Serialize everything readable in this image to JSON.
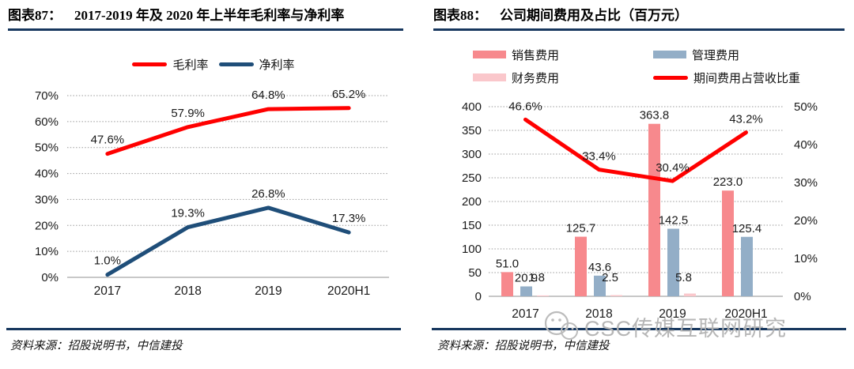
{
  "panels": {
    "left": {
      "tag": "图表87：",
      "title": "2017-2019 年及 2020 年上半年毛利率与净利率",
      "source": "资料来源：招股说明书，中信建投"
    },
    "right": {
      "tag": "图表88：",
      "title": "公司期间费用及占比（百万元）",
      "source": "资料来源：招股说明书，中信建投"
    }
  },
  "watermark": {
    "text": "CSC传媒互联网研究"
  },
  "colors": {
    "accent_navy": "#17375E"
  },
  "chart_data": [
    {
      "type": "line",
      "title": "2017-2019 年及 2020 年上半年毛利率与净利率",
      "categories": [
        "2017",
        "2018",
        "2019",
        "2020H1"
      ],
      "series": [
        {
          "name": "毛利率",
          "color": "#FF0000",
          "values": [
            47.6,
            57.9,
            64.8,
            65.2
          ],
          "labels": [
            "47.6%",
            "57.9%",
            "64.8%",
            "65.2%"
          ]
        },
        {
          "name": "净利率",
          "color": "#1F4E79",
          "values": [
            1.0,
            19.3,
            26.8,
            17.3
          ],
          "labels": [
            "1.0%",
            "19.3%",
            "26.8%",
            "17.3%"
          ]
        }
      ],
      "ylim": [
        0,
        70
      ],
      "ytick_step": 10,
      "ytick_labels": [
        "0%",
        "10%",
        "20%",
        "30%",
        "40%",
        "50%",
        "60%",
        "70%"
      ],
      "grid": true,
      "legend_position": "top"
    },
    {
      "type": "bar+line",
      "title": "公司期间费用及占比（百万元）",
      "categories": [
        "2017",
        "2018",
        "2019",
        "2020H1"
      ],
      "bar_series": [
        {
          "name": "销售费用",
          "color": "#F7898D",
          "values": [
            51.0,
            125.7,
            363.8,
            223.0
          ],
          "labels": [
            "51.0",
            "125.7",
            "363.8",
            "223.0"
          ]
        },
        {
          "name": "管理费用",
          "color": "#93AEC7",
          "values": [
            20.9,
            43.6,
            142.5,
            125.4
          ],
          "labels": [
            "20.9",
            "43.6",
            "142.5",
            "125.4"
          ]
        },
        {
          "name": "财务费用",
          "color": "#FAC7CB",
          "values": [
            1.8,
            2.5,
            5.8,
            null
          ],
          "labels": [
            "1.8",
            "2.5",
            "5.8",
            ""
          ]
        }
      ],
      "line_series": [
        {
          "name": "期间费用占营收比重",
          "color": "#FF0000",
          "values": [
            46.6,
            33.4,
            30.4,
            43.2
          ],
          "labels": [
            "46.6%",
            "33.4%",
            "30.4%",
            "43.2%"
          ]
        }
      ],
      "y_left": {
        "min": 0,
        "max": 400,
        "step": 50,
        "tick_labels": [
          "0",
          "50",
          "100",
          "150",
          "200",
          "250",
          "300",
          "350",
          "400"
        ]
      },
      "y_right": {
        "min": 0,
        "max": 50,
        "step": 10,
        "tick_labels": [
          "0%",
          "10%",
          "20%",
          "30%",
          "40%",
          "50%"
        ]
      },
      "grid": true,
      "legend_position": "top"
    }
  ]
}
